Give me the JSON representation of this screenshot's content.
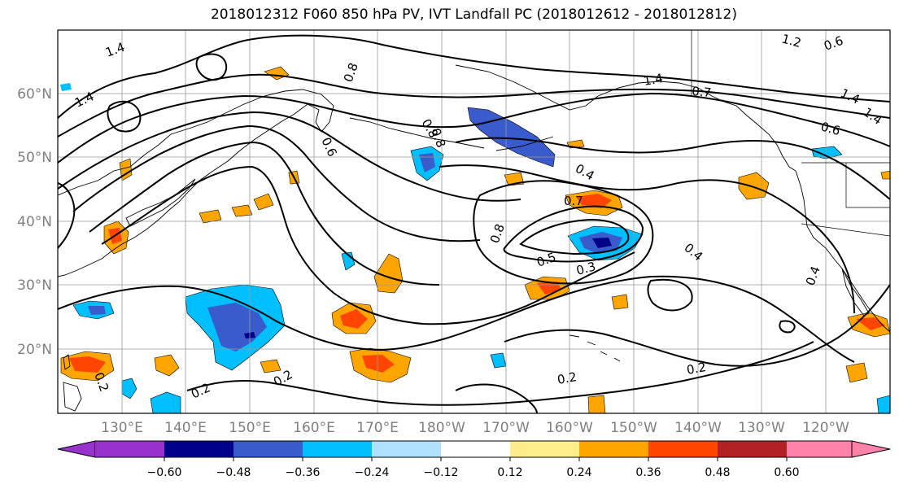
{
  "title": "2018012312 F060 850 hPa PV, IVT Landfall PC (2018012612 - 2018012812)",
  "latitude_labels": [
    "60°N",
    "50°N",
    "40°N",
    "30°N",
    "20°N"
  ],
  "longitude_labels": [
    "130°E",
    "140°E",
    "150°E",
    "160°E",
    "170°E",
    "180°W",
    "170°W",
    "160°W",
    "150°W",
    "140°W",
    "130°W",
    "120°W"
  ],
  "contour_labels": [
    "1.4",
    "1.4",
    "0.8",
    "1.4",
    "0.7",
    "1.2",
    "0.6",
    "0.8",
    "0.6",
    "0.8",
    "0.4",
    "0.7",
    "0.8",
    "0.5",
    "0.3",
    "0.4",
    "0.4",
    "0.2",
    "0.2",
    "0.2",
    "0.2",
    "0.2",
    "1.4",
    "1.4",
    "0.6"
  ],
  "colorbar": {
    "tick_labels": [
      "−0.60",
      "−0.48",
      "−0.36",
      "−0.24",
      "−0.12",
      "0.12",
      "0.24",
      "0.36",
      "0.48",
      "0.60"
    ],
    "colors": [
      "#9932cc",
      "#00008b",
      "#3a5bcc",
      "#00bfff",
      "#b0e2ff",
      "#ffffff",
      "#ffec8b",
      "#ffa500",
      "#ff4500",
      "#b22222",
      "#ff82ab"
    ]
  }
}
